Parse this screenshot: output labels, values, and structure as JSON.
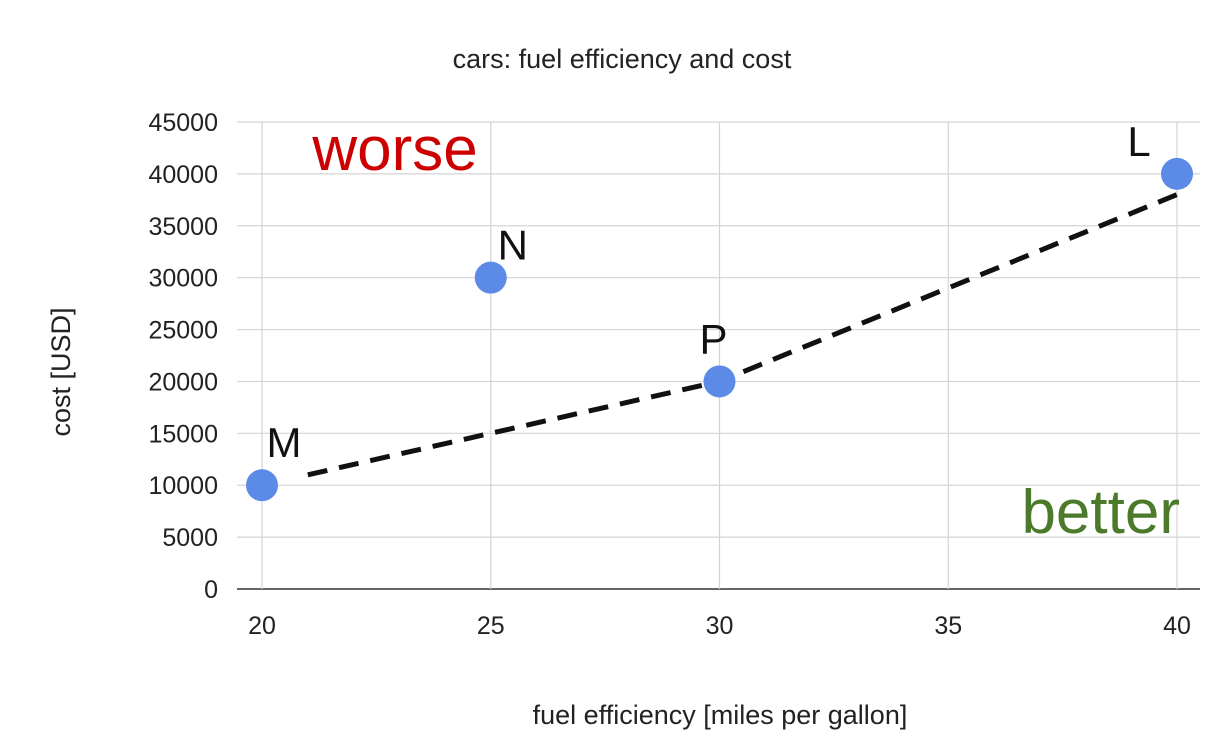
{
  "chart_data": {
    "type": "scatter",
    "title": "cars: fuel efficiency and cost",
    "xlabel": "fuel efficiency [miles per gallon]",
    "ylabel": "cost [USD]",
    "xlim": [
      20,
      40
    ],
    "ylim": [
      0,
      45000
    ],
    "xticks": [
      20,
      25,
      30,
      35,
      40
    ],
    "yticks": [
      0,
      5000,
      10000,
      15000,
      20000,
      25000,
      30000,
      35000,
      40000,
      45000
    ],
    "grid": true,
    "points": [
      {
        "label": "M",
        "x": 20,
        "y": 10000
      },
      {
        "label": "N",
        "x": 25,
        "y": 30000
      },
      {
        "label": "P",
        "x": 30,
        "y": 20000
      },
      {
        "label": "L",
        "x": 40,
        "y": 40000
      }
    ],
    "dashed_line": [
      [
        21,
        11000
      ],
      [
        25,
        15000
      ],
      [
        30,
        20000
      ],
      [
        40,
        38000
      ]
    ],
    "annotations": [
      {
        "text": "worse",
        "x": 21.1,
        "y": 42500,
        "color": "#cc0000"
      },
      {
        "text": "better",
        "x": 36.6,
        "y": 7500,
        "color": "#4a7a2a"
      }
    ],
    "point_color": "#5b8be6",
    "line_color": "#111111"
  }
}
